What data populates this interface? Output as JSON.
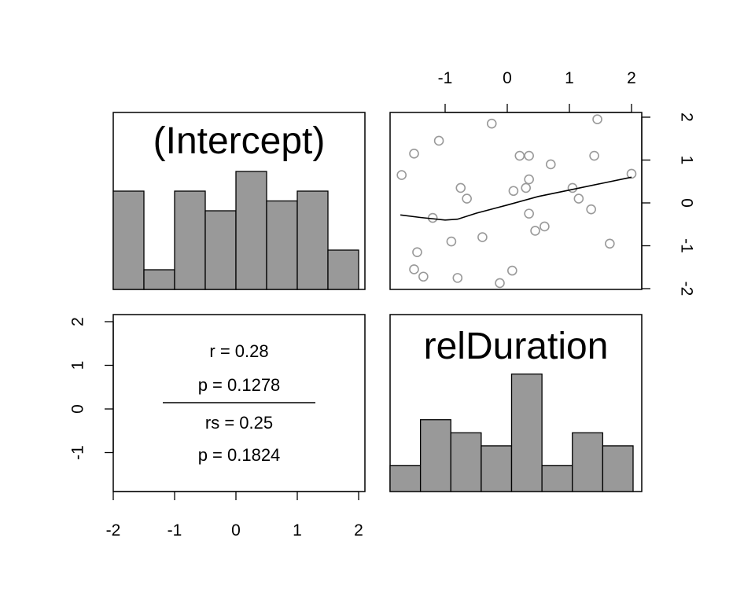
{
  "chart_data": [
    {
      "type": "histogram",
      "title": "(Intercept)",
      "bins": [
        -2.0,
        -1.5,
        -1.0,
        -0.5,
        0.0,
        0.5,
        1.0,
        1.5,
        2.0
      ],
      "counts": [
        5,
        1,
        5,
        4,
        6,
        4.5,
        5,
        2
      ]
    },
    {
      "type": "scatter",
      "x_label": "relDuration",
      "y_label": "(Intercept)",
      "top_axis_ticks": [
        -1,
        0,
        1,
        2
      ],
      "right_axis_ticks": [
        -2,
        -1,
        0,
        1,
        2
      ],
      "xlim": [
        -1.75,
        2.1
      ],
      "ylim": [
        -2.0,
        2.1
      ],
      "points": [
        {
          "x": -1.7,
          "y": 0.65
        },
        {
          "x": -1.5,
          "y": 1.15
        },
        {
          "x": -1.1,
          "y": 1.45
        },
        {
          "x": -0.25,
          "y": 1.85
        },
        {
          "x": 0.2,
          "y": 1.1
        },
        {
          "x": 0.35,
          "y": 1.1
        },
        {
          "x": 1.45,
          "y": 1.95
        },
        {
          "x": 1.4,
          "y": 1.1
        },
        {
          "x": 0.7,
          "y": 0.9
        },
        {
          "x": 2.0,
          "y": 0.68
        },
        {
          "x": -0.75,
          "y": 0.35
        },
        {
          "x": -0.65,
          "y": 0.1
        },
        {
          "x": 0.1,
          "y": 0.28
        },
        {
          "x": 0.3,
          "y": 0.35
        },
        {
          "x": 0.35,
          "y": 0.55
        },
        {
          "x": 1.05,
          "y": 0.35
        },
        {
          "x": 1.15,
          "y": 0.1
        },
        {
          "x": 1.35,
          "y": -0.15
        },
        {
          "x": -1.2,
          "y": -0.35
        },
        {
          "x": 0.35,
          "y": -0.25
        },
        {
          "x": 0.45,
          "y": -0.65
        },
        {
          "x": 0.6,
          "y": -0.55
        },
        {
          "x": -0.4,
          "y": -0.8
        },
        {
          "x": -0.9,
          "y": -0.9
        },
        {
          "x": 1.65,
          "y": -0.95
        },
        {
          "x": -1.45,
          "y": -1.15
        },
        {
          "x": -1.5,
          "y": -1.55
        },
        {
          "x": -1.35,
          "y": -1.72
        },
        {
          "x": -0.8,
          "y": -1.75
        },
        {
          "x": 0.08,
          "y": -1.58
        },
        {
          "x": -0.12,
          "y": -1.87
        }
      ],
      "smooth": [
        {
          "x": -1.72,
          "y": -0.28
        },
        {
          "x": -1.4,
          "y": -0.34
        },
        {
          "x": -1.0,
          "y": -0.4
        },
        {
          "x": -0.8,
          "y": -0.38
        },
        {
          "x": -0.5,
          "y": -0.24
        },
        {
          "x": 0.0,
          "y": -0.05
        },
        {
          "x": 0.5,
          "y": 0.15
        },
        {
          "x": 1.0,
          "y": 0.3
        },
        {
          "x": 1.5,
          "y": 0.45
        },
        {
          "x": 2.0,
          "y": 0.6
        }
      ]
    },
    {
      "type": "text",
      "r": "r = 0.28",
      "p_r": "p = 0.1278",
      "rs": "rs = 0.25",
      "p_rs": "p = 0.1824",
      "left_axis_ticks": [
        -1,
        0,
        1,
        2
      ],
      "bottom_axis_ticks": [
        -2,
        -1,
        0,
        1,
        2
      ]
    },
    {
      "type": "histogram",
      "title": "relDuration",
      "bins": [
        -1.75,
        -1.25,
        -0.75,
        -0.25,
        0.25,
        0.75,
        1.25,
        1.75,
        2.25
      ],
      "counts": [
        2,
        5.5,
        4.5,
        3.5,
        9,
        2,
        4.5,
        3.5
      ]
    }
  ]
}
